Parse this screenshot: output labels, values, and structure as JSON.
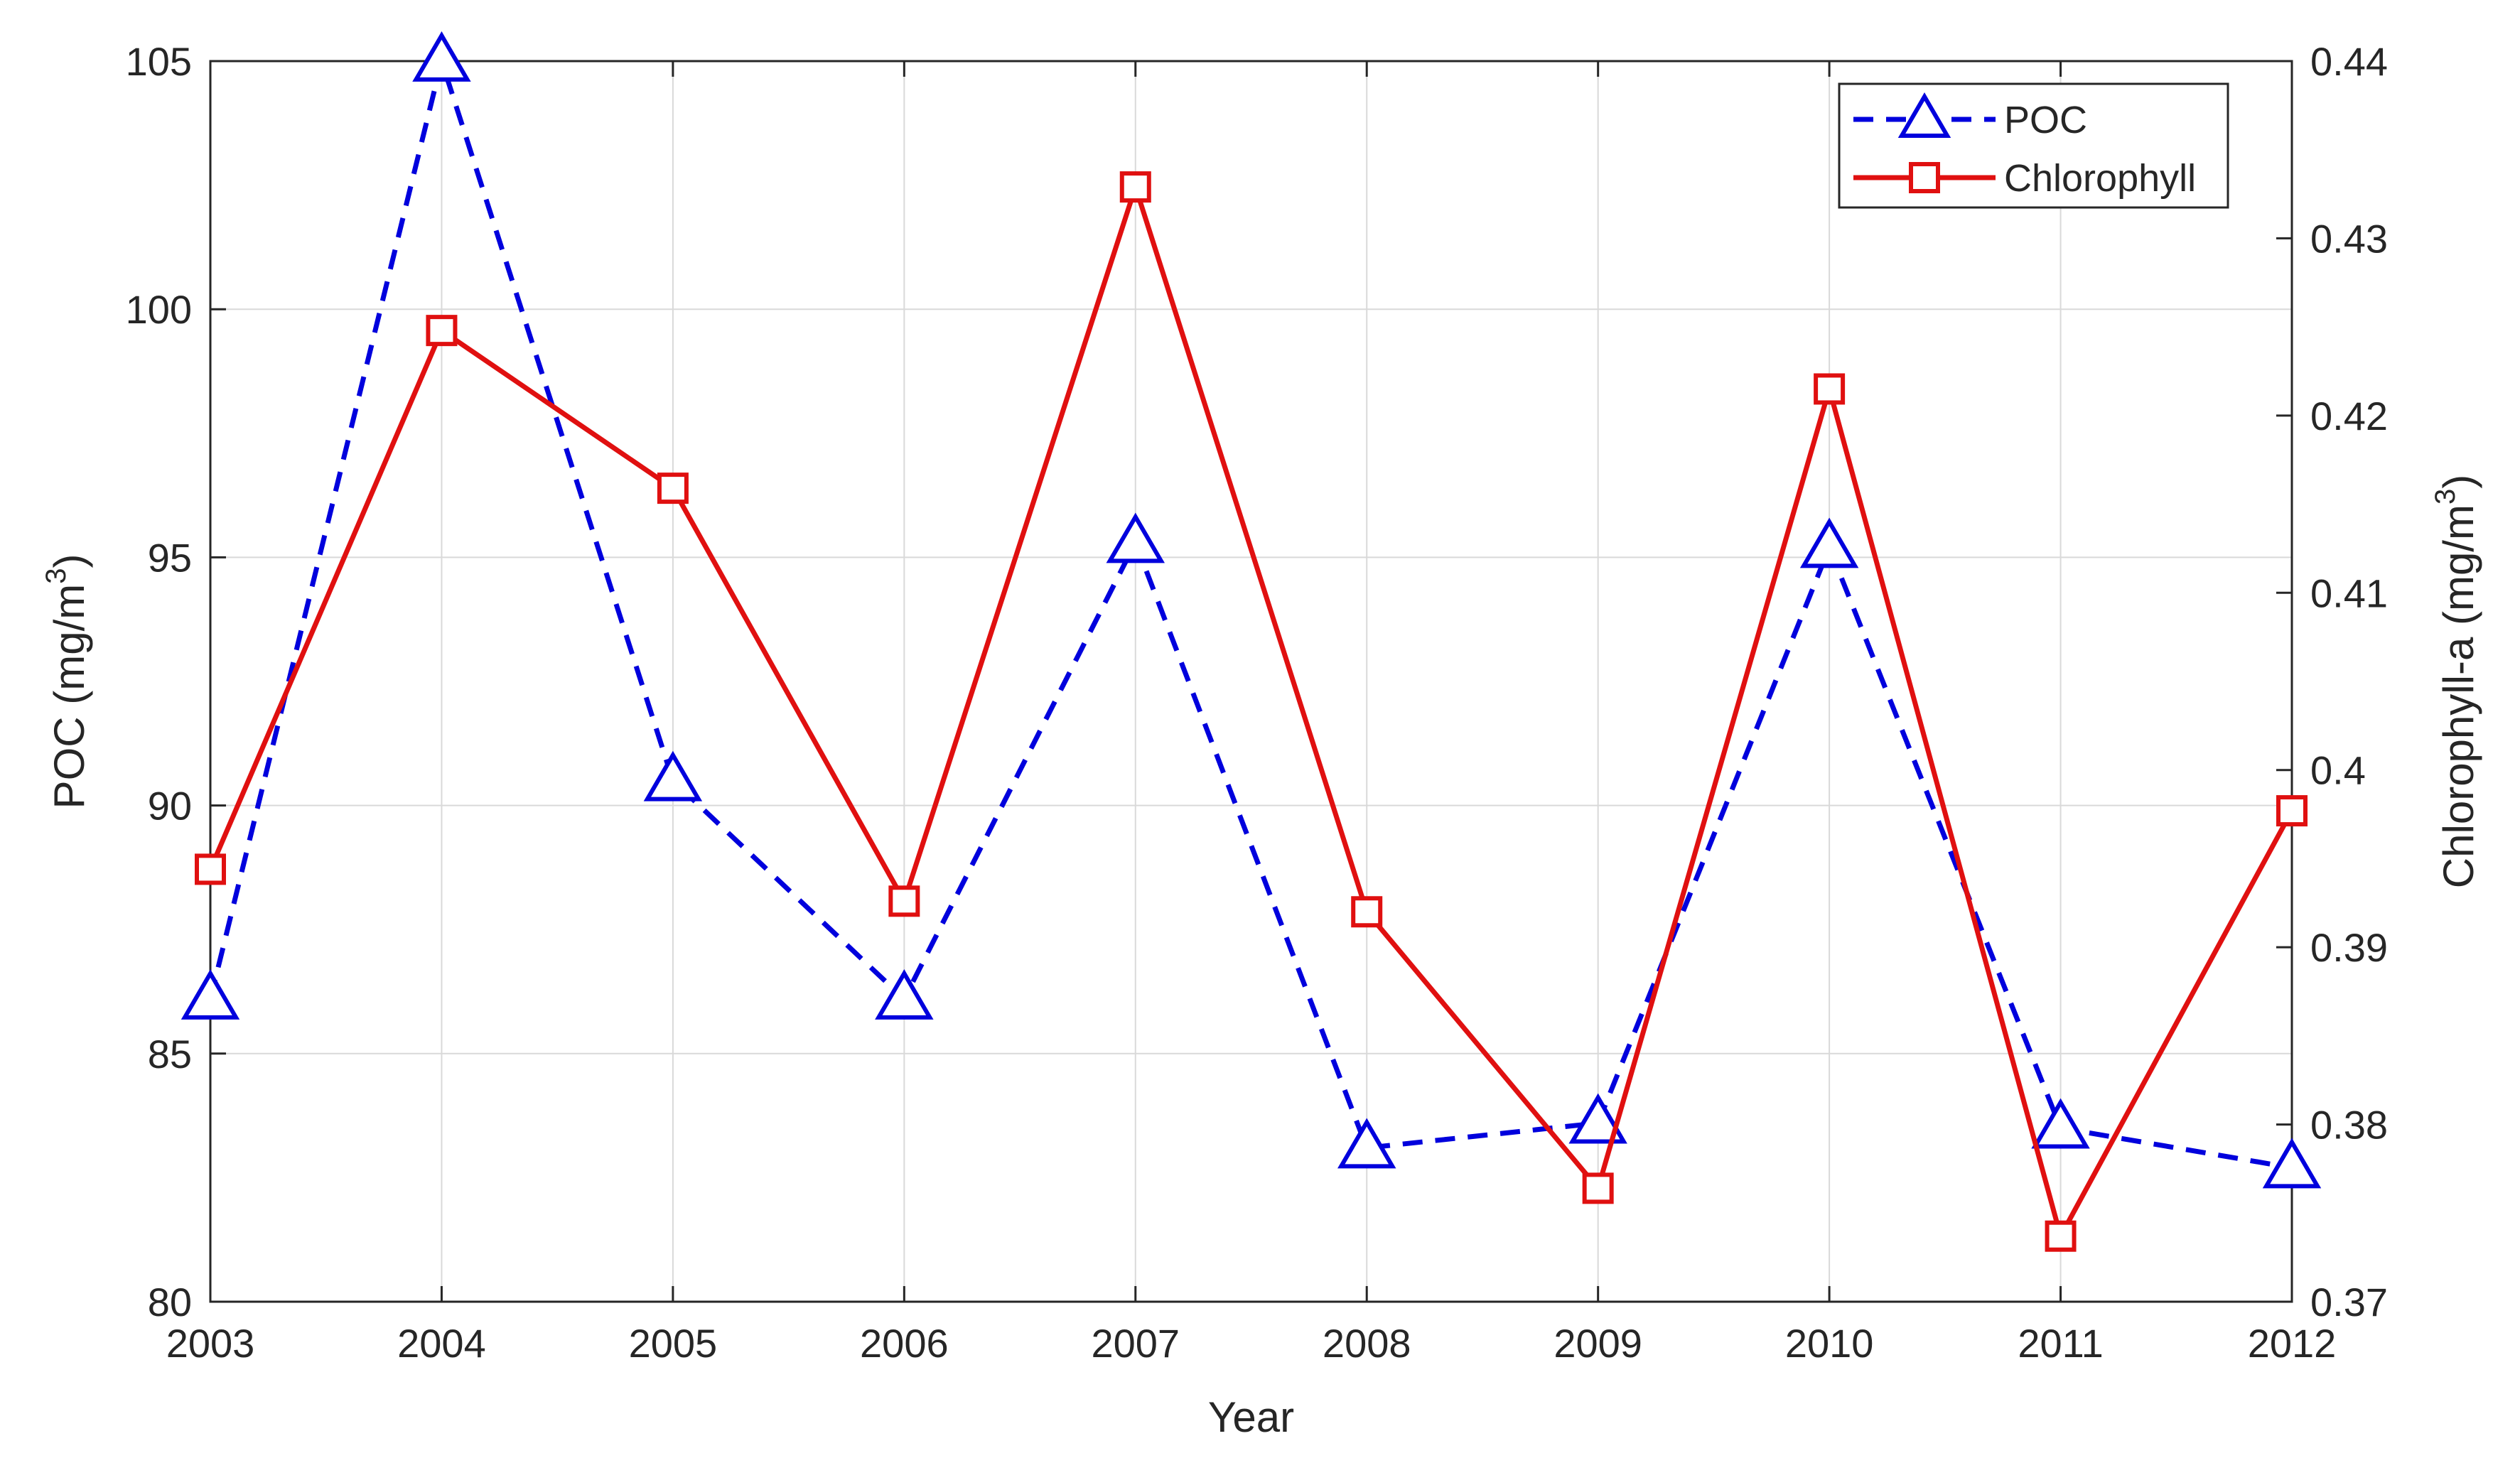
{
  "chart_data": {
    "type": "line",
    "xlabel": "Year",
    "ylabel_left": {
      "text": "POC (mg/m",
      "sup": "3",
      "close": ")"
    },
    "ylabel_right": {
      "text": "Chlorophyll-a (mg/m",
      "sup": "3",
      "close": ")"
    },
    "x": [
      2003,
      2004,
      2005,
      2006,
      2007,
      2008,
      2009,
      2010,
      2011,
      2012
    ],
    "xlim": [
      2003,
      2012
    ],
    "ylim_left": [
      80,
      105
    ],
    "ylim_right": [
      0.37,
      0.44
    ],
    "x_ticks": [
      "2003",
      "2004",
      "2005",
      "2006",
      "2007",
      "2008",
      "2009",
      "2010",
      "2011",
      "2012"
    ],
    "y_left_ticks": [
      "80",
      "85",
      "90",
      "95",
      "100",
      "105"
    ],
    "y_right_ticks": [
      "0.37",
      "0.38",
      "0.39",
      "0.4",
      "0.41",
      "0.42",
      "0.43",
      "0.44"
    ],
    "grid": true,
    "legend_position": "top-right",
    "series": [
      {
        "name": "POC",
        "axis": "left",
        "color": "#0000dd",
        "line_style": "dashed",
        "marker": "triangle",
        "values": [
          86.1,
          105.0,
          90.5,
          86.1,
          95.3,
          83.1,
          83.6,
          95.2,
          83.5,
          82.7
        ]
      },
      {
        "name": "Chlorophyll",
        "axis": "right",
        "color": "#e01010",
        "line_style": "solid",
        "marker": "square",
        "values": [
          0.3944,
          0.4248,
          0.4159,
          0.3926,
          0.4329,
          0.392,
          0.3764,
          0.4215,
          0.3737,
          0.3977
        ]
      }
    ]
  }
}
